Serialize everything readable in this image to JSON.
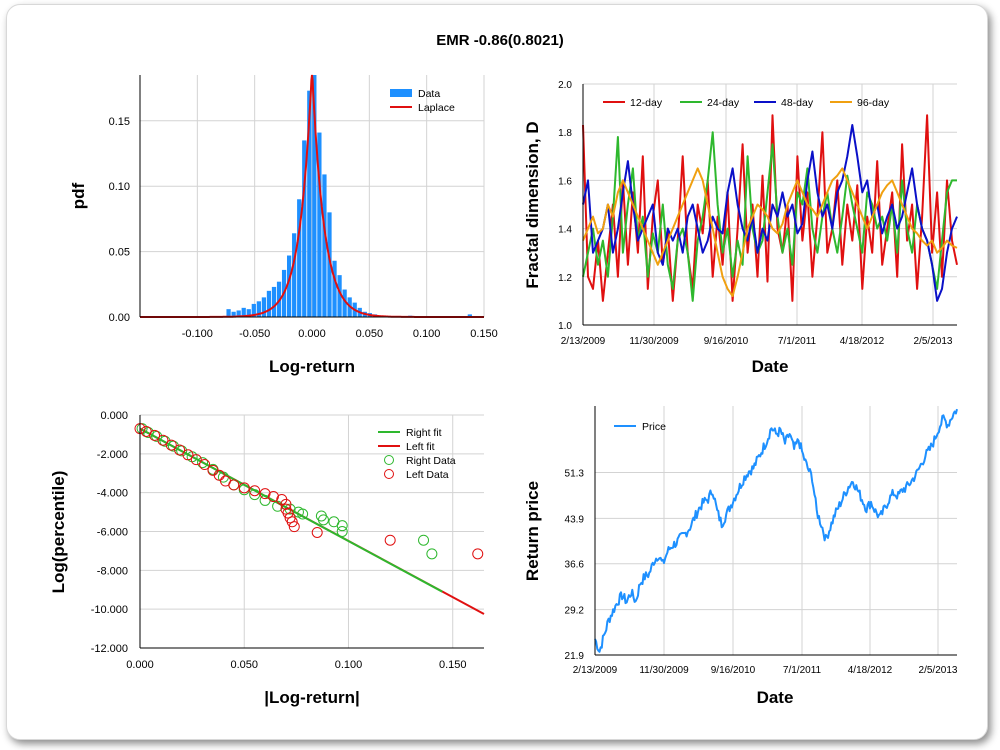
{
  "title": "EMR -0.86(0.8021)",
  "chart_data": [
    {
      "id": "pdf",
      "type": "bar",
      "xlabel": "Log-return",
      "ylabel": "pdf",
      "xlim": [
        -0.15,
        0.15
      ],
      "ylim": [
        0,
        0.185
      ],
      "xticks": [
        "-0.100",
        "-0.050",
        "0.000",
        "0.050",
        "0.100",
        "0.150"
      ],
      "xtick_values": [
        -0.1,
        -0.05,
        0.0,
        0.05,
        0.1,
        0.15
      ],
      "yticks": [
        "0.00",
        "0.05",
        "0.10",
        "0.15"
      ],
      "ytick_values": [
        0.0,
        0.05,
        0.1,
        0.15
      ],
      "legend": [
        "Data",
        "Laplace"
      ],
      "colors": {
        "bars": "#1e90ff",
        "fit": "#e01010"
      },
      "bins": [
        {
          "x": -0.0724,
          "y": 0.006
        },
        {
          "x": -0.068,
          "y": 0.004
        },
        {
          "x": -0.0636,
          "y": 0.005
        },
        {
          "x": -0.0592,
          "y": 0.007
        },
        {
          "x": -0.0548,
          "y": 0.006
        },
        {
          "x": -0.0504,
          "y": 0.01
        },
        {
          "x": -0.046,
          "y": 0.012
        },
        {
          "x": -0.0416,
          "y": 0.015
        },
        {
          "x": -0.0372,
          "y": 0.02
        },
        {
          "x": -0.0328,
          "y": 0.023
        },
        {
          "x": -0.0284,
          "y": 0.027
        },
        {
          "x": -0.024,
          "y": 0.036
        },
        {
          "x": -0.0196,
          "y": 0.047
        },
        {
          "x": -0.0152,
          "y": 0.064
        },
        {
          "x": -0.0108,
          "y": 0.09
        },
        {
          "x": -0.0064,
          "y": 0.135
        },
        {
          "x": -0.002,
          "y": 0.173
        },
        {
          "x": 0.0024,
          "y": 0.185
        },
        {
          "x": 0.0068,
          "y": 0.141
        },
        {
          "x": 0.0112,
          "y": 0.109
        },
        {
          "x": 0.0156,
          "y": 0.08
        },
        {
          "x": 0.02,
          "y": 0.043
        },
        {
          "x": 0.0244,
          "y": 0.032
        },
        {
          "x": 0.0288,
          "y": 0.021
        },
        {
          "x": 0.0332,
          "y": 0.015
        },
        {
          "x": 0.0376,
          "y": 0.011
        },
        {
          "x": 0.042,
          "y": 0.007
        },
        {
          "x": 0.0464,
          "y": 0.004
        },
        {
          "x": 0.0508,
          "y": 0.003
        },
        {
          "x": 0.0552,
          "y": 0.002
        },
        {
          "x": 0.064,
          "y": 0.001
        },
        {
          "x": 0.086,
          "y": 0.001
        },
        {
          "x": 0.138,
          "y": 0.002
        }
      ],
      "laplace": {
        "mu": 0.0,
        "b": 0.0105,
        "peak": 0.19
      }
    },
    {
      "id": "fractal",
      "type": "line",
      "xlabel": "Date",
      "ylabel": "Fractal dimension, D",
      "xticks": [
        "2/13/2009",
        "11/30/2009",
        "9/16/2010",
        "7/1/2011",
        "4/18/2012",
        "2/5/2013"
      ],
      "xlim": [
        0,
        1
      ],
      "ylim": [
        1.0,
        2.0
      ],
      "yticks": [
        "1.0",
        "1.2",
        "1.4",
        "1.6",
        "1.8",
        "2.0"
      ],
      "ytick_values": [
        1.0,
        1.2,
        1.4,
        1.6,
        1.8,
        2.0
      ],
      "series": [
        {
          "name": "12-day",
          "color": "#e01010",
          "values": [
            1.83,
            1.2,
            1.15,
            1.35,
            1.1,
            1.3,
            1.5,
            1.2,
            1.6,
            1.25,
            1.55,
            1.3,
            1.7,
            1.15,
            1.45,
            1.6,
            1.25,
            1.4,
            1.1,
            1.35,
            1.7,
            1.3,
            1.15,
            1.5,
            1.38,
            1.6,
            1.2,
            1.45,
            1.25,
            1.55,
            1.1,
            1.4,
            1.75,
            1.3,
            1.5,
            1.2,
            1.62,
            1.18,
            1.87,
            1.4,
            1.3,
            1.5,
            1.1,
            1.7,
            1.35,
            1.55,
            1.2,
            1.45,
            1.8,
            1.3,
            1.4,
            1.6,
            1.25,
            1.5,
            1.35,
            1.58,
            1.15,
            1.45,
            1.3,
            1.68,
            1.25,
            1.4,
            1.55,
            1.2,
            1.75,
            1.35,
            1.5,
            1.15,
            1.45,
            1.87,
            1.3,
            1.55,
            1.2,
            1.6,
            1.35,
            1.25
          ]
        },
        {
          "name": "24-day",
          "color": "#2eb82e",
          "values": [
            1.2,
            1.3,
            1.4,
            1.25,
            1.35,
            1.2,
            1.45,
            1.78,
            1.3,
            1.5,
            1.65,
            1.35,
            1.45,
            1.2,
            1.38,
            1.3,
            1.5,
            1.25,
            1.15,
            1.35,
            1.4,
            1.3,
            1.1,
            1.35,
            1.45,
            1.6,
            1.8,
            1.5,
            1.3,
            1.4,
            1.2,
            1.35,
            1.25,
            1.7,
            1.4,
            1.3,
            1.35,
            1.55,
            1.75,
            1.45,
            1.3,
            1.4,
            1.25,
            1.55,
            1.5,
            1.65,
            1.4,
            1.3,
            1.45,
            1.55,
            1.4,
            1.3,
            1.45,
            1.62,
            1.5,
            1.4,
            1.3,
            1.55,
            1.5,
            1.4,
            1.45,
            1.35,
            1.5,
            1.3,
            1.6,
            1.4,
            1.3,
            1.5,
            1.4,
            1.35,
            1.25,
            1.15,
            1.35,
            1.55,
            1.6,
            1.6
          ]
        },
        {
          "name": "48-day",
          "color": "#0a10c8",
          "values": [
            1.5,
            1.6,
            1.3,
            1.35,
            1.4,
            1.5,
            1.3,
            1.4,
            1.55,
            1.68,
            1.5,
            1.35,
            1.4,
            1.45,
            1.5,
            1.3,
            1.25,
            1.4,
            1.35,
            1.4,
            1.3,
            1.45,
            1.5,
            1.4,
            1.3,
            1.35,
            1.45,
            1.4,
            1.38,
            1.55,
            1.65,
            1.5,
            1.4,
            1.35,
            1.45,
            1.3,
            1.4,
            1.35,
            1.5,
            1.45,
            1.55,
            1.45,
            1.5,
            1.38,
            1.42,
            1.6,
            1.72,
            1.55,
            1.45,
            1.5,
            1.4,
            1.55,
            1.6,
            1.7,
            1.83,
            1.7,
            1.55,
            1.6,
            1.45,
            1.5,
            1.38,
            1.45,
            1.5,
            1.4,
            1.45,
            1.55,
            1.65,
            1.5,
            1.4,
            1.35,
            1.25,
            1.1,
            1.15,
            1.3,
            1.4,
            1.45
          ]
        },
        {
          "name": "96-day",
          "color": "#f0a010",
          "values": [
            1.35,
            1.4,
            1.45,
            1.38,
            1.4,
            1.5,
            1.45,
            1.55,
            1.6,
            1.55,
            1.5,
            1.45,
            1.4,
            1.35,
            1.3,
            1.25,
            1.3,
            1.35,
            1.4,
            1.45,
            1.5,
            1.55,
            1.6,
            1.65,
            1.6,
            1.5,
            1.4,
            1.3,
            1.2,
            1.15,
            1.12,
            1.2,
            1.3,
            1.4,
            1.45,
            1.5,
            1.48,
            1.45,
            1.4,
            1.38,
            1.42,
            1.5,
            1.55,
            1.6,
            1.55,
            1.5,
            1.48,
            1.45,
            1.5,
            1.55,
            1.6,
            1.62,
            1.65,
            1.6,
            1.55,
            1.5,
            1.45,
            1.4,
            1.45,
            1.5,
            1.55,
            1.58,
            1.6,
            1.55,
            1.5,
            1.45,
            1.4,
            1.38,
            1.35,
            1.33,
            1.35,
            1.3,
            1.32,
            1.35,
            1.33,
            1.32
          ]
        }
      ]
    },
    {
      "id": "tail",
      "type": "scatter",
      "xlabel": "|Log-return|",
      "ylabel": "Log(percentile)",
      "xlim": [
        0,
        0.165
      ],
      "ylim": [
        -12,
        0
      ],
      "xticks": [
        "0.000",
        "0.050",
        "0.100",
        "0.150"
      ],
      "xtick_values": [
        0.0,
        0.05,
        0.1,
        0.15
      ],
      "yticks": [
        "0.000",
        "-2.000",
        "-4.000",
        "-6.000",
        "-8.000",
        "-10.000",
        "-12.000"
      ],
      "ytick_values": [
        0,
        -2,
        -4,
        -6,
        -8,
        -10,
        -12
      ],
      "legend": [
        "Right fit",
        "Left fit",
        "Right Data",
        "Left Data"
      ],
      "colors": {
        "right": "#2eb82e",
        "left": "#e01010"
      },
      "right_fit": [
        [
          0,
          -0.7
        ],
        [
          0.145,
          -9.1
        ]
      ],
      "left_fit": [
        [
          0,
          -0.7
        ],
        [
          0.165,
          -10.25
        ]
      ],
      "right_data": [
        [
          0.001,
          -0.7
        ],
        [
          0.004,
          -0.9
        ],
        [
          0.008,
          -1.1
        ],
        [
          0.012,
          -1.35
        ],
        [
          0.016,
          -1.6
        ],
        [
          0.02,
          -1.85
        ],
        [
          0.025,
          -2.15
        ],
        [
          0.03,
          -2.45
        ],
        [
          0.035,
          -2.8
        ],
        [
          0.04,
          -3.2
        ],
        [
          0.045,
          -3.6
        ],
        [
          0.05,
          -3.85
        ],
        [
          0.055,
          -4.1
        ],
        [
          0.06,
          -4.4
        ],
        [
          0.066,
          -4.7
        ],
        [
          0.072,
          -4.85
        ],
        [
          0.076,
          -5.0
        ],
        [
          0.078,
          -5.1
        ],
        [
          0.087,
          -5.2
        ],
        [
          0.088,
          -5.4
        ],
        [
          0.093,
          -5.5
        ],
        [
          0.097,
          -5.7
        ],
        [
          0.097,
          -6.0
        ],
        [
          0.136,
          -6.45
        ],
        [
          0.14,
          -7.15
        ]
      ],
      "left_data": [
        [
          0.0,
          -0.7
        ],
        [
          0.003,
          -0.85
        ],
        [
          0.007,
          -1.05
        ],
        [
          0.011,
          -1.3
        ],
        [
          0.015,
          -1.55
        ],
        [
          0.019,
          -1.8
        ],
        [
          0.023,
          -2.05
        ],
        [
          0.027,
          -2.3
        ],
        [
          0.031,
          -2.55
        ],
        [
          0.035,
          -2.85
        ],
        [
          0.038,
          -3.1
        ],
        [
          0.041,
          -3.4
        ],
        [
          0.045,
          -3.6
        ],
        [
          0.05,
          -3.75
        ],
        [
          0.055,
          -3.9
        ],
        [
          0.06,
          -4.05
        ],
        [
          0.064,
          -4.2
        ],
        [
          0.068,
          -4.35
        ],
        [
          0.07,
          -4.6
        ],
        [
          0.07,
          -4.85
        ],
        [
          0.071,
          -5.05
        ],
        [
          0.072,
          -5.3
        ],
        [
          0.073,
          -5.5
        ],
        [
          0.074,
          -5.75
        ],
        [
          0.085,
          -6.05
        ],
        [
          0.12,
          -6.45
        ],
        [
          0.162,
          -7.15
        ]
      ]
    },
    {
      "id": "price",
      "type": "line",
      "xlabel": "Date",
      "ylabel": "Return price",
      "xticks": [
        "2/13/2009",
        "11/30/2009",
        "9/16/2010",
        "7/1/2011",
        "4/18/2012",
        "2/5/2013"
      ],
      "xlim": [
        0,
        1
      ],
      "ylim": [
        21.9,
        62
      ],
      "yticks": [
        "21.9",
        "29.2",
        "36.6",
        "43.9",
        "51.3"
      ],
      "ytick_values": [
        21.9,
        29.2,
        36.6,
        43.9,
        51.3
      ],
      "legend": [
        "Price"
      ],
      "color": "#1e90ff",
      "series": [
        {
          "name": "Price",
          "values": [
            24.5,
            22.5,
            25.0,
            27.5,
            29.0,
            30.5,
            31.5,
            30.5,
            32.0,
            30.5,
            33.5,
            34.5,
            35.0,
            37.0,
            38.0,
            36.5,
            38.5,
            39.5,
            40.0,
            40.8,
            41.5,
            42.5,
            44.0,
            45.5,
            46.5,
            47.0,
            48.5,
            45.0,
            43.0,
            44.5,
            46.0,
            47.5,
            49.0,
            50.5,
            51.5,
            52.0,
            53.5,
            55.0,
            56.5,
            58.5,
            57.5,
            58.0,
            56.0,
            57.5,
            55.0,
            56.5,
            54.0,
            52.0,
            50.5,
            45.0,
            43.0,
            40.5,
            42.5,
            44.5,
            46.0,
            47.5,
            49.0,
            50.0,
            48.5,
            47.0,
            45.5,
            46.5,
            45.0,
            44.0,
            45.5,
            47.0,
            48.0,
            47.5,
            48.5,
            49.0,
            50.0,
            51.0,
            52.5,
            54.0,
            55.0,
            56.5,
            58.5,
            60.0,
            59.0,
            60.5,
            61.5
          ]
        }
      ]
    }
  ]
}
